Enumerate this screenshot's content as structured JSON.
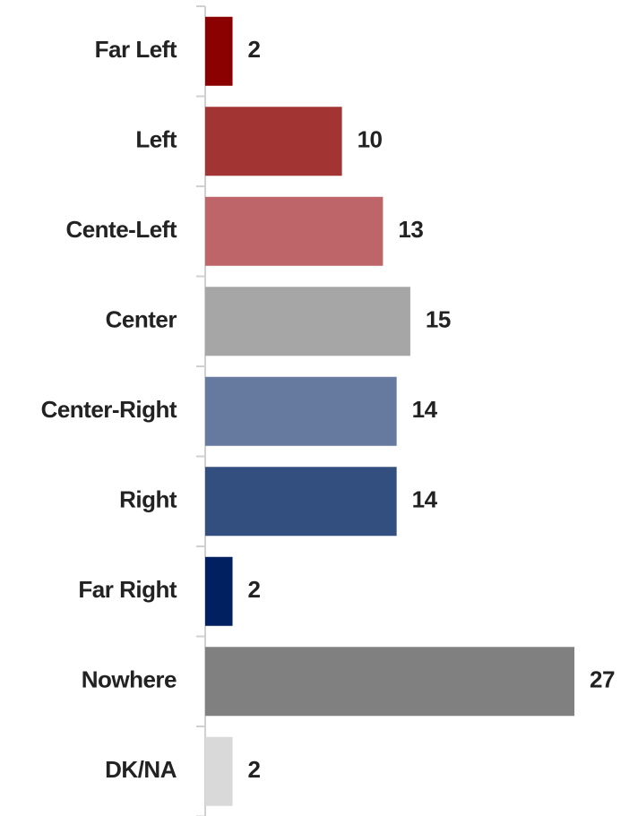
{
  "chart_data": {
    "type": "bar",
    "orientation": "horizontal",
    "categories": [
      "Far Left",
      "Left",
      "Cente-Left",
      "Center",
      "Center-Right",
      "Right",
      "Far Right",
      "Nowhere",
      "DK/NA"
    ],
    "values": [
      2,
      10,
      13,
      15,
      14,
      14,
      2,
      27,
      2
    ],
    "colors": [
      "#8b0000",
      "#a33434",
      "#bd6568",
      "#a6a6a6",
      "#66799f",
      "#334f80",
      "#002060",
      "#808080",
      "#d9d9d9"
    ]
  }
}
